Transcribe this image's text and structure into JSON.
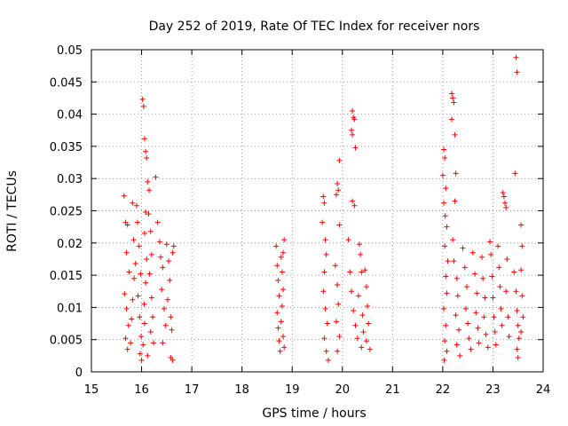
{
  "chart_data": {
    "type": "scatter",
    "title": "Day 252 of 2019, Rate Of TEC Index for receiver nors",
    "xlabel": "GPS time / hours",
    "ylabel": "ROTI / TECUs",
    "xlim": [
      15,
      24
    ],
    "ylim": [
      0,
      0.05
    ],
    "xticks": [
      15,
      16,
      17,
      18,
      19,
      20,
      21,
      22,
      23,
      24
    ],
    "xtick_labels": [
      "15",
      "16",
      "17",
      "18",
      "19",
      "20",
      "21",
      "22",
      "23",
      "24"
    ],
    "yticks": [
      0,
      0.005,
      0.01,
      0.015,
      0.02,
      0.025,
      0.03,
      0.035,
      0.04,
      0.045,
      0.05
    ],
    "ytick_labels": [
      "0",
      "0.005",
      "0.01",
      "0.015",
      "0.02",
      "0.025",
      "0.03",
      "0.035",
      "0.04",
      "0.045",
      "0.05"
    ],
    "grid": true,
    "marker": "+",
    "marker_color": "#ff0000",
    "series": [
      {
        "name": "ROTI",
        "points": [
          [
            15.65,
            0.0273
          ],
          [
            15.68,
            0.0232
          ],
          [
            15.72,
            0.0228
          ],
          [
            15.7,
            0.0185
          ],
          [
            15.75,
            0.0155
          ],
          [
            15.66,
            0.0121
          ],
          [
            15.7,
            0.0098
          ],
          [
            15.74,
            0.0072
          ],
          [
            15.68,
            0.0052
          ],
          [
            15.72,
            0.0035
          ],
          [
            15.78,
            0.0045
          ],
          [
            15.8,
            0.0082
          ],
          [
            15.82,
            0.0112
          ],
          [
            15.85,
            0.0145
          ],
          [
            15.88,
            0.0168
          ],
          [
            15.84,
            0.0205
          ],
          [
            15.82,
            0.0262
          ],
          [
            15.9,
            0.0258
          ],
          [
            15.92,
            0.0232
          ],
          [
            15.95,
            0.0195
          ],
          [
            15.98,
            0.0152
          ],
          [
            15.93,
            0.0118
          ],
          [
            15.96,
            0.0085
          ],
          [
            15.99,
            0.0055
          ],
          [
            15.97,
            0.0028
          ],
          [
            16.0,
            0.0018
          ],
          [
            16.03,
            0.0042
          ],
          [
            16.06,
            0.0075
          ],
          [
            16.05,
            0.0105
          ],
          [
            16.08,
            0.0138
          ],
          [
            16.1,
            0.0175
          ],
          [
            16.06,
            0.0215
          ],
          [
            16.08,
            0.0248
          ],
          [
            16.02,
            0.0423
          ],
          [
            16.04,
            0.0412
          ],
          [
            16.06,
            0.0362
          ],
          [
            16.08,
            0.0342
          ],
          [
            16.1,
            0.0332
          ],
          [
            16.12,
            0.0295
          ],
          [
            16.15,
            0.0282
          ],
          [
            16.14,
            0.0245
          ],
          [
            16.18,
            0.0218
          ],
          [
            16.2,
            0.0182
          ],
          [
            16.16,
            0.0152
          ],
          [
            16.2,
            0.0115
          ],
          [
            16.22,
            0.0085
          ],
          [
            16.18,
            0.0062
          ],
          [
            16.24,
            0.0045
          ],
          [
            16.12,
            0.0025
          ],
          [
            16.28,
            0.0302
          ],
          [
            16.32,
            0.0232
          ],
          [
            16.36,
            0.0202
          ],
          [
            16.38,
            0.0178
          ],
          [
            16.42,
            0.0162
          ],
          [
            16.4,
            0.0128
          ],
          [
            16.45,
            0.0098
          ],
          [
            16.48,
            0.0072
          ],
          [
            16.42,
            0.0045
          ],
          [
            16.5,
            0.0198
          ],
          [
            16.54,
            0.0172
          ],
          [
            16.56,
            0.0142
          ],
          [
            16.52,
            0.0112
          ],
          [
            16.58,
            0.0085
          ],
          [
            16.6,
            0.0065
          ],
          [
            16.62,
            0.0185
          ],
          [
            16.64,
            0.0195
          ],
          [
            16.58,
            0.0022
          ],
          [
            16.62,
            0.0018
          ],
          [
            18.68,
            0.0195
          ],
          [
            18.7,
            0.0165
          ],
          [
            18.72,
            0.0142
          ],
          [
            18.74,
            0.0118
          ],
          [
            18.7,
            0.0092
          ],
          [
            18.72,
            0.0068
          ],
          [
            18.74,
            0.0048
          ],
          [
            18.76,
            0.0032
          ],
          [
            18.78,
            0.0178
          ],
          [
            18.8,
            0.0155
          ],
          [
            18.82,
            0.0128
          ],
          [
            18.84,
            0.0205
          ],
          [
            18.82,
            0.0185
          ],
          [
            18.8,
            0.0102
          ],
          [
            18.78,
            0.0078
          ],
          [
            18.82,
            0.0055
          ],
          [
            18.84,
            0.0038
          ],
          [
            19.62,
            0.0272
          ],
          [
            19.64,
            0.0262
          ],
          [
            19.6,
            0.0232
          ],
          [
            19.66,
            0.0205
          ],
          [
            19.68,
            0.0182
          ],
          [
            19.64,
            0.0155
          ],
          [
            19.62,
            0.0125
          ],
          [
            19.66,
            0.0098
          ],
          [
            19.7,
            0.0075
          ],
          [
            19.64,
            0.0052
          ],
          [
            19.68,
            0.0032
          ],
          [
            19.72,
            0.0018
          ],
          [
            19.9,
            0.0292
          ],
          [
            19.92,
            0.0282
          ],
          [
            19.88,
            0.0275
          ],
          [
            19.94,
            0.0328
          ],
          [
            19.94,
            0.0228
          ],
          [
            19.86,
            0.0165
          ],
          [
            19.9,
            0.0135
          ],
          [
            19.92,
            0.0105
          ],
          [
            19.88,
            0.0078
          ],
          [
            19.94,
            0.0055
          ],
          [
            19.9,
            0.0032
          ],
          [
            20.2,
            0.0405
          ],
          [
            20.22,
            0.0395
          ],
          [
            20.24,
            0.0392
          ],
          [
            20.18,
            0.0375
          ],
          [
            20.2,
            0.0368
          ],
          [
            20.26,
            0.0348
          ],
          [
            20.2,
            0.0265
          ],
          [
            20.24,
            0.0258
          ],
          [
            20.12,
            0.0205
          ],
          [
            20.15,
            0.0155
          ],
          [
            20.18,
            0.0125
          ],
          [
            20.22,
            0.0095
          ],
          [
            20.26,
            0.0072
          ],
          [
            20.3,
            0.0052
          ],
          [
            20.34,
            0.0198
          ],
          [
            20.36,
            0.0182
          ],
          [
            20.38,
            0.0155
          ],
          [
            20.32,
            0.0118
          ],
          [
            20.4,
            0.0088
          ],
          [
            20.42,
            0.0062
          ],
          [
            20.38,
            0.0038
          ],
          [
            20.45,
            0.0158
          ],
          [
            20.48,
            0.0132
          ],
          [
            20.5,
            0.0102
          ],
          [
            20.52,
            0.0075
          ],
          [
            20.48,
            0.0048
          ],
          [
            20.55,
            0.0035
          ],
          [
            22.02,
            0.0345
          ],
          [
            22.04,
            0.0332
          ],
          [
            22.0,
            0.0305
          ],
          [
            22.06,
            0.0285
          ],
          [
            22.02,
            0.0262
          ],
          [
            22.05,
            0.0242
          ],
          [
            22.08,
            0.0225
          ],
          [
            22.04,
            0.0195
          ],
          [
            22.1,
            0.0172
          ],
          [
            22.06,
            0.0148
          ],
          [
            22.08,
            0.0122
          ],
          [
            22.02,
            0.0098
          ],
          [
            22.06,
            0.0072
          ],
          [
            22.04,
            0.0048
          ],
          [
            22.08,
            0.0032
          ],
          [
            22.03,
            0.0018
          ],
          [
            22.18,
            0.0432
          ],
          [
            22.2,
            0.0425
          ],
          [
            22.22,
            0.0418
          ],
          [
            22.24,
            0.0368
          ],
          [
            22.18,
            0.0392
          ],
          [
            22.26,
            0.0308
          ],
          [
            22.24,
            0.0265
          ],
          [
            22.2,
            0.0205
          ],
          [
            22.22,
            0.0172
          ],
          [
            22.28,
            0.0145
          ],
          [
            22.3,
            0.0118
          ],
          [
            22.26,
            0.0088
          ],
          [
            22.32,
            0.0065
          ],
          [
            22.28,
            0.0042
          ],
          [
            22.34,
            0.0025
          ],
          [
            22.4,
            0.0192
          ],
          [
            22.44,
            0.0162
          ],
          [
            22.48,
            0.0132
          ],
          [
            22.46,
            0.0098
          ],
          [
            22.5,
            0.0075
          ],
          [
            22.52,
            0.0052
          ],
          [
            22.56,
            0.0035
          ],
          [
            22.6,
            0.0185
          ],
          [
            22.64,
            0.0152
          ],
          [
            22.68,
            0.0122
          ],
          [
            22.66,
            0.0092
          ],
          [
            22.7,
            0.0068
          ],
          [
            22.72,
            0.0045
          ],
          [
            22.78,
            0.0178
          ],
          [
            22.8,
            0.0145
          ],
          [
            22.84,
            0.0115
          ],
          [
            22.82,
            0.0085
          ],
          [
            22.86,
            0.0058
          ],
          [
            22.9,
            0.0038
          ],
          [
            22.94,
            0.0202
          ],
          [
            22.96,
            0.0182
          ],
          [
            22.98,
            0.0148
          ],
          [
            23.0,
            0.0115
          ],
          [
            23.02,
            0.0085
          ],
          [
            23.04,
            0.0062
          ],
          [
            23.06,
            0.0042
          ],
          [
            23.1,
            0.0195
          ],
          [
            23.12,
            0.0162
          ],
          [
            23.14,
            0.0132
          ],
          [
            23.16,
            0.0098
          ],
          [
            23.18,
            0.0072
          ],
          [
            23.2,
            0.0278
          ],
          [
            23.22,
            0.0272
          ],
          [
            23.24,
            0.0262
          ],
          [
            23.26,
            0.0255
          ],
          [
            23.28,
            0.0175
          ],
          [
            23.26,
            0.0125
          ],
          [
            23.3,
            0.0085
          ],
          [
            23.32,
            0.0055
          ],
          [
            23.46,
            0.0488
          ],
          [
            23.48,
            0.0465
          ],
          [
            23.44,
            0.0308
          ],
          [
            23.42,
            0.0155
          ],
          [
            23.46,
            0.0125
          ],
          [
            23.48,
            0.0095
          ],
          [
            23.5,
            0.0072
          ],
          [
            23.52,
            0.0052
          ],
          [
            23.48,
            0.0035
          ],
          [
            23.5,
            0.0022
          ],
          [
            23.56,
            0.0228
          ],
          [
            23.58,
            0.0195
          ],
          [
            23.56,
            0.0158
          ],
          [
            23.58,
            0.0118
          ],
          [
            23.6,
            0.0085
          ],
          [
            23.56,
            0.0062
          ]
        ]
      }
    ]
  }
}
